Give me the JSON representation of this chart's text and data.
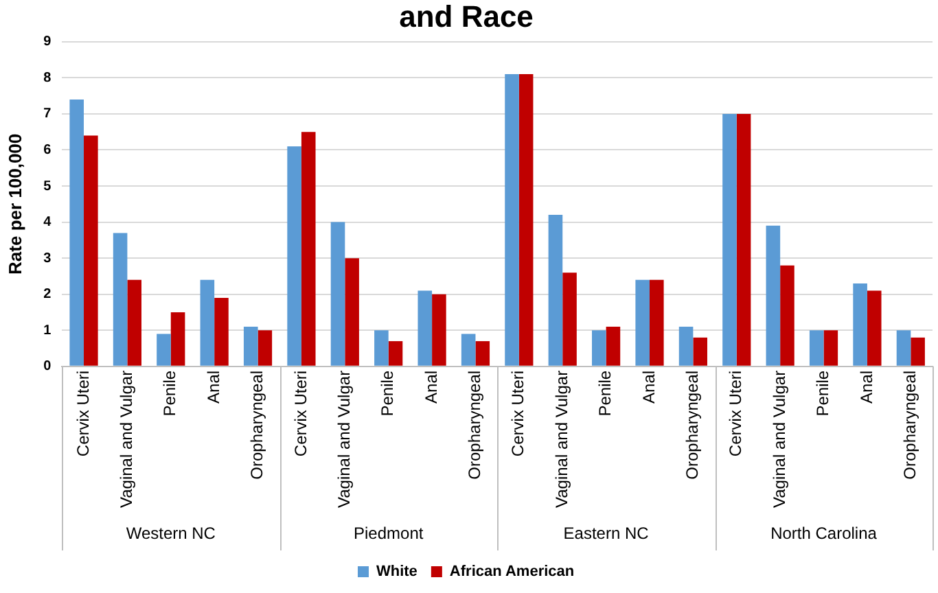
{
  "chart_data": {
    "type": "bar",
    "title": "and Race",
    "ylabel": "Rate per 100,000",
    "categories": [
      "Cervix Uteri",
      "Vaginal and Vulgar",
      "Penile",
      "Anal",
      "Oropharyngeal",
      "Cervix Uteri",
      "Vaginal and Vulgar",
      "Penile",
      "Anal",
      "Oropharyngeal",
      "Cervix Uteri",
      "Vaginal and Vulgar",
      "Penile",
      "Anal",
      "Oropharyngeal",
      "Cervix Uteri",
      "Vaginal and Vulgar",
      "Penile",
      "Anal",
      "Oropharyngeal"
    ],
    "annotations": [
      "Western NC",
      "Piedmont",
      "Eastern NC",
      "North Carolina"
    ],
    "series": [
      {
        "name": "White",
        "color": "#5b9bd5",
        "values": [
          7.4,
          3.7,
          0.9,
          2.4,
          1.1,
          6.1,
          4.0,
          1.0,
          2.1,
          0.9,
          8.1,
          4.2,
          1.0,
          2.4,
          1.1,
          7.0,
          3.9,
          1.0,
          2.3,
          1.0
        ]
      },
      {
        "name": "African American",
        "color": "#c00000",
        "values": [
          6.4,
          2.4,
          1.5,
          1.9,
          1.0,
          6.5,
          3.0,
          0.7,
          2.0,
          0.7,
          8.1,
          2.6,
          1.1,
          2.4,
          0.8,
          7.0,
          2.8,
          1.0,
          2.1,
          0.8
        ]
      }
    ],
    "ylim": [
      0,
      9
    ],
    "yticks": [
      0,
      1,
      2,
      3,
      4,
      5,
      6,
      7,
      8,
      9
    ],
    "grid": "y",
    "legend": "bottom"
  }
}
